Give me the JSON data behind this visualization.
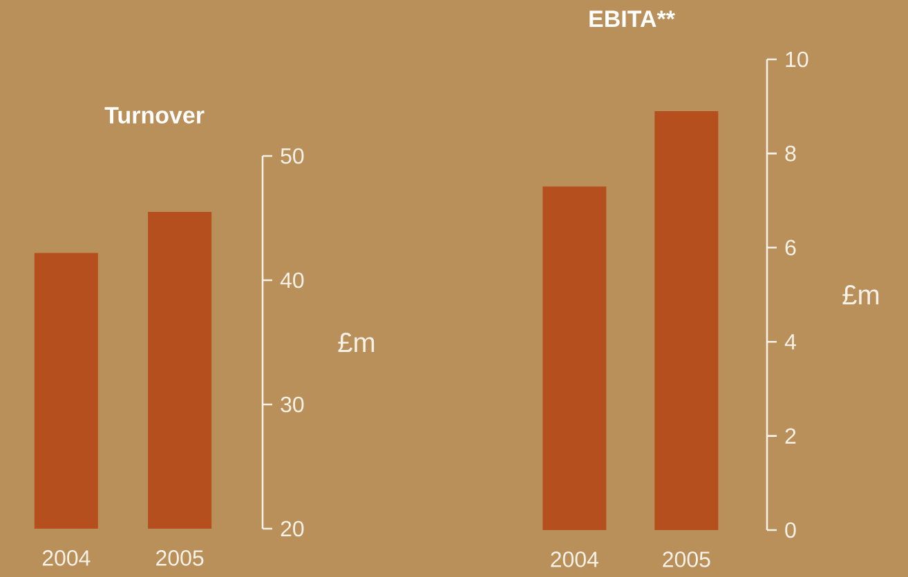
{
  "chart_data": [
    {
      "type": "bar",
      "title": "Turnover",
      "ylabel": "£m",
      "categories": [
        "2004",
        "2005"
      ],
      "values": [
        42.2,
        45.5
      ],
      "color": "#b5501e",
      "ylim": [
        20,
        50
      ],
      "yticks": [
        20,
        30,
        40,
        50
      ]
    },
    {
      "type": "bar",
      "title": "EBITA**",
      "ylabel": "£m",
      "categories": [
        "2004",
        "2005"
      ],
      "values": [
        7.3,
        8.9
      ],
      "color": "#b5501e",
      "ylim": [
        0,
        10
      ],
      "yticks": [
        0,
        2,
        4,
        6,
        8,
        10
      ]
    }
  ]
}
